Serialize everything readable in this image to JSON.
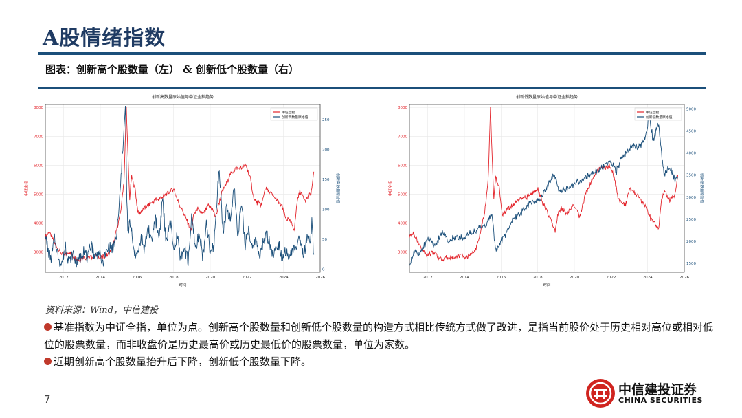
{
  "page": {
    "title": "A股情绪指数",
    "subtitle": "图表：创新高个股数量（左） & 创新低个股数量（右）",
    "source": "资料来源：Wind，中信建投",
    "bullets": [
      "基准指数为中证全指，单位为点。创新高个股数量和创新低个股数量的构造方式相比传统方式做了改进，是指当前股价处于历史相对高位或相对低位的股票数量，而非收盘价是历史最高价或历史最低价的股票数量，单位为家数。",
      "近期创新高个股数量抬升后下降，创新低个股数量下降。"
    ],
    "page_number": "7",
    "logo": {
      "cn": "中信建投证券",
      "en": "CHINA SECURITIES"
    }
  },
  "colors": {
    "red": "#e3242b",
    "blue": "#1b4f7a",
    "accent_dot": "#c0392b",
    "rule": "#1b4f7a"
  },
  "chart_data": [
    {
      "type": "line",
      "title": "创新高数量原始值与中证全指趋势",
      "xlabel": "时间",
      "ylabel_left": "中证全指",
      "ylabel_right": "创新高数量原始值",
      "xlim": [
        2011,
        2026
      ],
      "x_ticks": [
        "2012",
        "2014",
        "2016",
        "2018",
        "2020",
        "2022",
        "2024",
        "2026"
      ],
      "ylim_left": [
        2300,
        8100
      ],
      "ylim_right": [
        -5,
        275
      ],
      "y_ticks_left": [
        "3000",
        "4000",
        "5000",
        "6000",
        "7000",
        "8000"
      ],
      "y_ticks_right": [
        "0",
        "50",
        "100",
        "150",
        "200",
        "250"
      ],
      "legend_position": "top-right",
      "series": [
        {
          "name": "中证全指",
          "axis": "left",
          "color": "#e3242b",
          "x": [
            2011.0,
            2011.2,
            2011.5,
            2011.8,
            2012.0,
            2012.3,
            2012.6,
            2012.9,
            2013.0,
            2013.4,
            2013.8,
            2014.0,
            2014.4,
            2014.7,
            2014.9,
            2015.1,
            2015.3,
            2015.42,
            2015.5,
            2015.6,
            2015.7,
            2015.9,
            2016.0,
            2016.1,
            2016.4,
            2016.8,
            2017.0,
            2017.4,
            2017.8,
            2018.0,
            2018.2,
            2018.5,
            2018.8,
            2018.95,
            2019.1,
            2019.3,
            2019.6,
            2019.9,
            2020.1,
            2020.3,
            2020.6,
            2020.9,
            2021.1,
            2021.4,
            2021.7,
            2021.95,
            2022.2,
            2022.4,
            2022.8,
            2023.0,
            2023.5,
            2023.9,
            2024.1,
            2024.3,
            2024.6,
            2024.75,
            2024.9,
            2025.2,
            2025.5,
            2025.65
          ],
          "y": [
            3500,
            3700,
            3300,
            3000,
            2900,
            3000,
            2800,
            2700,
            2850,
            2800,
            2900,
            2800,
            2900,
            3200,
            3800,
            4300,
            5500,
            8000,
            6500,
            4800,
            5600,
            5200,
            4600,
            4300,
            4500,
            4700,
            4800,
            4900,
            5100,
            5200,
            4800,
            4400,
            4000,
            3700,
            4300,
            4500,
            4300,
            4600,
            4500,
            4200,
            5000,
            5400,
            5700,
            5900,
            5900,
            6000,
            5500,
            4800,
            4600,
            5200,
            4900,
            4600,
            4200,
            4100,
            3800,
            4800,
            5100,
            4800,
            5000,
            5700
          ]
        },
        {
          "name": "创新高数量原始值",
          "axis": "right",
          "color": "#1b4f7a",
          "x": [
            2011.0,
            2011.15,
            2011.3,
            2011.5,
            2011.7,
            2011.9,
            2012.1,
            2012.3,
            2012.5,
            2012.7,
            2012.9,
            2013.1,
            2013.3,
            2013.5,
            2013.7,
            2013.9,
            2014.1,
            2014.3,
            2014.5,
            2014.7,
            2014.9,
            2015.0,
            2015.15,
            2015.3,
            2015.38,
            2015.43,
            2015.5,
            2015.6,
            2015.8,
            2016.0,
            2016.2,
            2016.4,
            2016.6,
            2016.8,
            2017.0,
            2017.2,
            2017.4,
            2017.6,
            2017.8,
            2018.0,
            2018.2,
            2018.4,
            2018.6,
            2018.8,
            2019.0,
            2019.2,
            2019.4,
            2019.6,
            2019.8,
            2020.0,
            2020.2,
            2020.4,
            2020.5,
            2020.7,
            2020.9,
            2021.1,
            2021.3,
            2021.5,
            2021.7,
            2021.9,
            2022.1,
            2022.3,
            2022.5,
            2022.7,
            2022.9,
            2023.1,
            2023.3,
            2023.5,
            2023.7,
            2023.9,
            2024.1,
            2024.3,
            2024.5,
            2024.7,
            2024.8,
            2024.9,
            2025.1,
            2025.3,
            2025.45,
            2025.55,
            2025.65
          ],
          "y": [
            60,
            30,
            15,
            50,
            20,
            8,
            40,
            12,
            25,
            10,
            18,
            35,
            15,
            45,
            20,
            30,
            10,
            25,
            40,
            30,
            60,
            90,
            160,
            240,
            270,
            140,
            60,
            80,
            40,
            20,
            55,
            35,
            70,
            45,
            90,
            50,
            120,
            40,
            85,
            30,
            55,
            20,
            35,
            15,
            90,
            30,
            60,
            20,
            75,
            25,
            40,
            130,
            170,
            60,
            100,
            80,
            140,
            60,
            110,
            40,
            70,
            30,
            55,
            20,
            45,
            60,
            35,
            25,
            50,
            20,
            30,
            15,
            40,
            25,
            60,
            40,
            20,
            50,
            40,
            80,
            15
          ]
        }
      ]
    },
    {
      "type": "line",
      "title": "创新低数量原始值与中证全指趋势",
      "xlabel": "时间",
      "ylabel_left": "中证全指",
      "ylabel_right": "创新低数量原始值",
      "xlim": [
        2011,
        2026
      ],
      "x_ticks": [
        "2012",
        "2014",
        "2016",
        "2018",
        "2020",
        "2022",
        "2024",
        "2026"
      ],
      "ylim_left": [
        2300,
        8100
      ],
      "ylim_right": [
        1300,
        5100
      ],
      "y_ticks_left": [
        "3000",
        "4000",
        "5000",
        "6000",
        "7000",
        "8000"
      ],
      "y_ticks_right": [
        "1500",
        "2000",
        "2500",
        "3000",
        "3500",
        "4000",
        "4500",
        "5000"
      ],
      "legend_position": "top-right",
      "series": [
        {
          "name": "中证全指",
          "axis": "left",
          "color": "#e3242b",
          "x": [
            2011.0,
            2011.2,
            2011.5,
            2011.8,
            2012.0,
            2012.3,
            2012.6,
            2012.9,
            2013.0,
            2013.4,
            2013.8,
            2014.0,
            2014.4,
            2014.7,
            2014.9,
            2015.1,
            2015.3,
            2015.42,
            2015.5,
            2015.6,
            2015.7,
            2015.9,
            2016.0,
            2016.1,
            2016.4,
            2016.8,
            2017.0,
            2017.4,
            2017.8,
            2018.0,
            2018.2,
            2018.5,
            2018.8,
            2018.95,
            2019.1,
            2019.3,
            2019.6,
            2019.9,
            2020.1,
            2020.3,
            2020.6,
            2020.9,
            2021.1,
            2021.4,
            2021.7,
            2021.95,
            2022.2,
            2022.4,
            2022.8,
            2023.0,
            2023.5,
            2023.9,
            2024.1,
            2024.3,
            2024.6,
            2024.75,
            2024.9,
            2025.2,
            2025.5,
            2025.65
          ],
          "y": [
            3500,
            3700,
            3300,
            3000,
            2900,
            3000,
            2800,
            2700,
            2850,
            2800,
            2900,
            2800,
            2900,
            3200,
            3800,
            4300,
            5500,
            8000,
            6500,
            4800,
            5600,
            5200,
            4600,
            4300,
            4500,
            4700,
            4800,
            4900,
            5100,
            5200,
            4800,
            4400,
            4000,
            3700,
            4300,
            4500,
            4300,
            4600,
            4500,
            4200,
            5000,
            5400,
            5700,
            5900,
            5900,
            6000,
            5500,
            4800,
            4600,
            5200,
            4900,
            4600,
            4200,
            4100,
            3800,
            4800,
            5100,
            4800,
            5000,
            5700
          ]
        },
        {
          "name": "创新低数量原始值",
          "axis": "right",
          "color": "#1b4f7a",
          "x": [
            2011.0,
            2011.3,
            2011.6,
            2012.0,
            2012.4,
            2012.8,
            2013.2,
            2013.6,
            2014.0,
            2014.4,
            2014.8,
            2015.2,
            2015.5,
            2015.7,
            2016.0,
            2016.3,
            2016.6,
            2017.0,
            2017.4,
            2017.8,
            2018.2,
            2018.6,
            2018.9,
            2019.2,
            2019.6,
            2020.0,
            2020.4,
            2020.8,
            2021.2,
            2021.6,
            2022.0,
            2022.3,
            2022.6,
            2022.9,
            2023.2,
            2023.5,
            2023.8,
            2024.0,
            2024.05,
            2024.3,
            2024.6,
            2024.75,
            2024.9,
            2025.2,
            2025.5,
            2025.65
          ],
          "y": [
            1500,
            1800,
            1700,
            2100,
            1900,
            2200,
            2000,
            2100,
            2100,
            2200,
            2300,
            2400,
            2600,
            1800,
            2000,
            2200,
            2500,
            2600,
            2800,
            2900,
            3000,
            3300,
            3500,
            3100,
            3200,
            3300,
            3400,
            3500,
            3600,
            3700,
            3800,
            3600,
            3900,
            4000,
            4200,
            4100,
            4300,
            4600,
            4950,
            4300,
            4700,
            4000,
            3500,
            3700,
            3400,
            3500
          ]
        }
      ]
    }
  ]
}
